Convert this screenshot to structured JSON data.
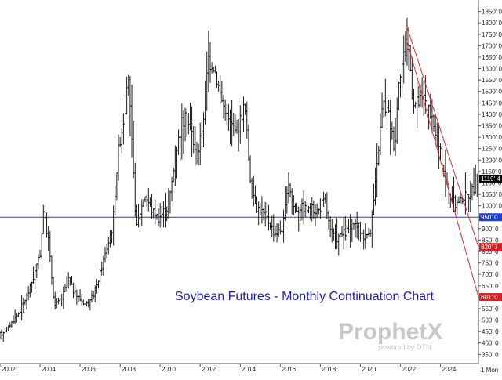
{
  "colors": {
    "bars": "#1a1a1a",
    "horizontal_line": "#1f3fdc",
    "trendline": "#e03030",
    "tag_red": "#d81f26",
    "tag_blue": "#1f3fdc",
    "tag_black": "#000000",
    "title": "#1d1db8",
    "watermark": "#c8c8c8",
    "axis": "#555555"
  },
  "watermark": {
    "main": "ProphetX",
    "sub": "powered by DTN"
  },
  "timeframe_label": "1 Mon",
  "chart_data": {
    "type": "ohlc",
    "title": "Soybean Futures - Monthly Continuation Chart",
    "xlabel": "",
    "ylabel": "",
    "xlim": [
      2002.0,
      2025.9
    ],
    "ylim": [
      310,
      1900
    ],
    "y_ticks": [
      350,
      400,
      450,
      500,
      550,
      600,
      650,
      700,
      750,
      800,
      850,
      900,
      950,
      1000,
      1050,
      1100,
      1150,
      1200,
      1250,
      1300,
      1350,
      1400,
      1450,
      1500,
      1550,
      1600,
      1650,
      1700,
      1750,
      1800,
      1850
    ],
    "y_tick_labels": [
      "350' 0",
      "400' 0",
      "450' 0",
      "500' 0",
      "550' 0",
      "600' 0",
      "650' 0",
      "700' 0",
      "750' 0",
      "800' 0",
      "850' 0",
      "900' 0",
      "950' 0",
      "1000' 0",
      "1050' 0",
      "1100' 0",
      "1150' 0",
      "1200' 0",
      "1250' 0",
      "1300' 0",
      "1350' 0",
      "1400' 0",
      "1450' 0",
      "1500' 0",
      "1550' 0",
      "1600' 0",
      "1650' 0",
      "1700' 0",
      "1750' 0",
      "1800' 0",
      "1850' 0"
    ],
    "x_ticks": [
      2002,
      2004,
      2006,
      2008,
      2010,
      2012,
      2014,
      2016,
      2018,
      2020,
      2022,
      2024
    ],
    "x_tick_labels": [
      "2002",
      "2004",
      "2006",
      "2008",
      "2010",
      "2012",
      "2014",
      "2016",
      "2018",
      "2020",
      "2022",
      "2024"
    ],
    "anchors": [
      [
        2002.0,
        430
      ],
      [
        2002.5,
        470
      ],
      [
        2003.0,
        530
      ],
      [
        2003.4,
        600
      ],
      [
        2003.8,
        700
      ],
      [
        2004.1,
        800
      ],
      [
        2004.25,
        980
      ],
      [
        2004.5,
        850
      ],
      [
        2004.8,
        560
      ],
      [
        2005.2,
        600
      ],
      [
        2005.5,
        680
      ],
      [
        2005.8,
        620
      ],
      [
        2006.3,
        570
      ],
      [
        2006.6,
        580
      ],
      [
        2006.9,
        640
      ],
      [
        2007.3,
        780
      ],
      [
        2007.7,
        900
      ],
      [
        2008.0,
        1250
      ],
      [
        2008.3,
        1400
      ],
      [
        2008.5,
        1560
      ],
      [
        2008.7,
        1200
      ],
      [
        2008.9,
        900
      ],
      [
        2009.3,
        1050
      ],
      [
        2009.7,
        980
      ],
      [
        2010.0,
        950
      ],
      [
        2010.5,
        1000
      ],
      [
        2010.9,
        1250
      ],
      [
        2011.2,
        1380
      ],
      [
        2011.6,
        1350
      ],
      [
        2011.9,
        1200
      ],
      [
        2012.2,
        1350
      ],
      [
        2012.5,
        1650
      ],
      [
        2012.8,
        1600
      ],
      [
        2013.2,
        1450
      ],
      [
        2013.6,
        1350
      ],
      [
        2014.0,
        1350
      ],
      [
        2014.3,
        1450
      ],
      [
        2014.6,
        1100
      ],
      [
        2014.9,
        1000
      ],
      [
        2015.4,
        950
      ],
      [
        2015.8,
        880
      ],
      [
        2016.2,
        900
      ],
      [
        2016.5,
        1100
      ],
      [
        2016.8,
        980
      ],
      [
        2017.2,
        1000
      ],
      [
        2017.6,
        980
      ],
      [
        2018.0,
        980
      ],
      [
        2018.3,
        1030
      ],
      [
        2018.6,
        880
      ],
      [
        2018.9,
        860
      ],
      [
        2019.3,
        880
      ],
      [
        2019.6,
        900
      ],
      [
        2019.9,
        920
      ],
      [
        2020.3,
        860
      ],
      [
        2020.6,
        900
      ],
      [
        2020.9,
        1150
      ],
      [
        2021.2,
        1450
      ],
      [
        2021.5,
        1400
      ],
      [
        2021.8,
        1250
      ],
      [
        2022.0,
        1550
      ],
      [
        2022.3,
        1680
      ],
      [
        2022.5,
        1700
      ],
      [
        2022.7,
        1450
      ],
      [
        2023.0,
        1450
      ],
      [
        2023.3,
        1480
      ],
      [
        2023.6,
        1380
      ],
      [
        2023.9,
        1300
      ],
      [
        2024.2,
        1180
      ],
      [
        2024.5,
        1050
      ],
      [
        2024.8,
        1000
      ],
      [
        2025.1,
        1030
      ],
      [
        2025.4,
        1040
      ],
      [
        2025.7,
        1070
      ],
      [
        2025.85,
        1110
      ]
    ],
    "horizontal_lines": [
      {
        "value": 950,
        "tag": "950' 0"
      }
    ],
    "trendlines": [
      {
        "from": [
          2022.3,
          1790
        ],
        "to": [
          2025.9,
          820
        ],
        "tag": "820' 7"
      },
      {
        "from": [
          2022.3,
          1730
        ],
        "to": [
          2025.9,
          601
        ],
        "tag": "601' 0"
      }
    ],
    "last_price": {
      "value": 1119,
      "tag": "1119' 4"
    }
  }
}
